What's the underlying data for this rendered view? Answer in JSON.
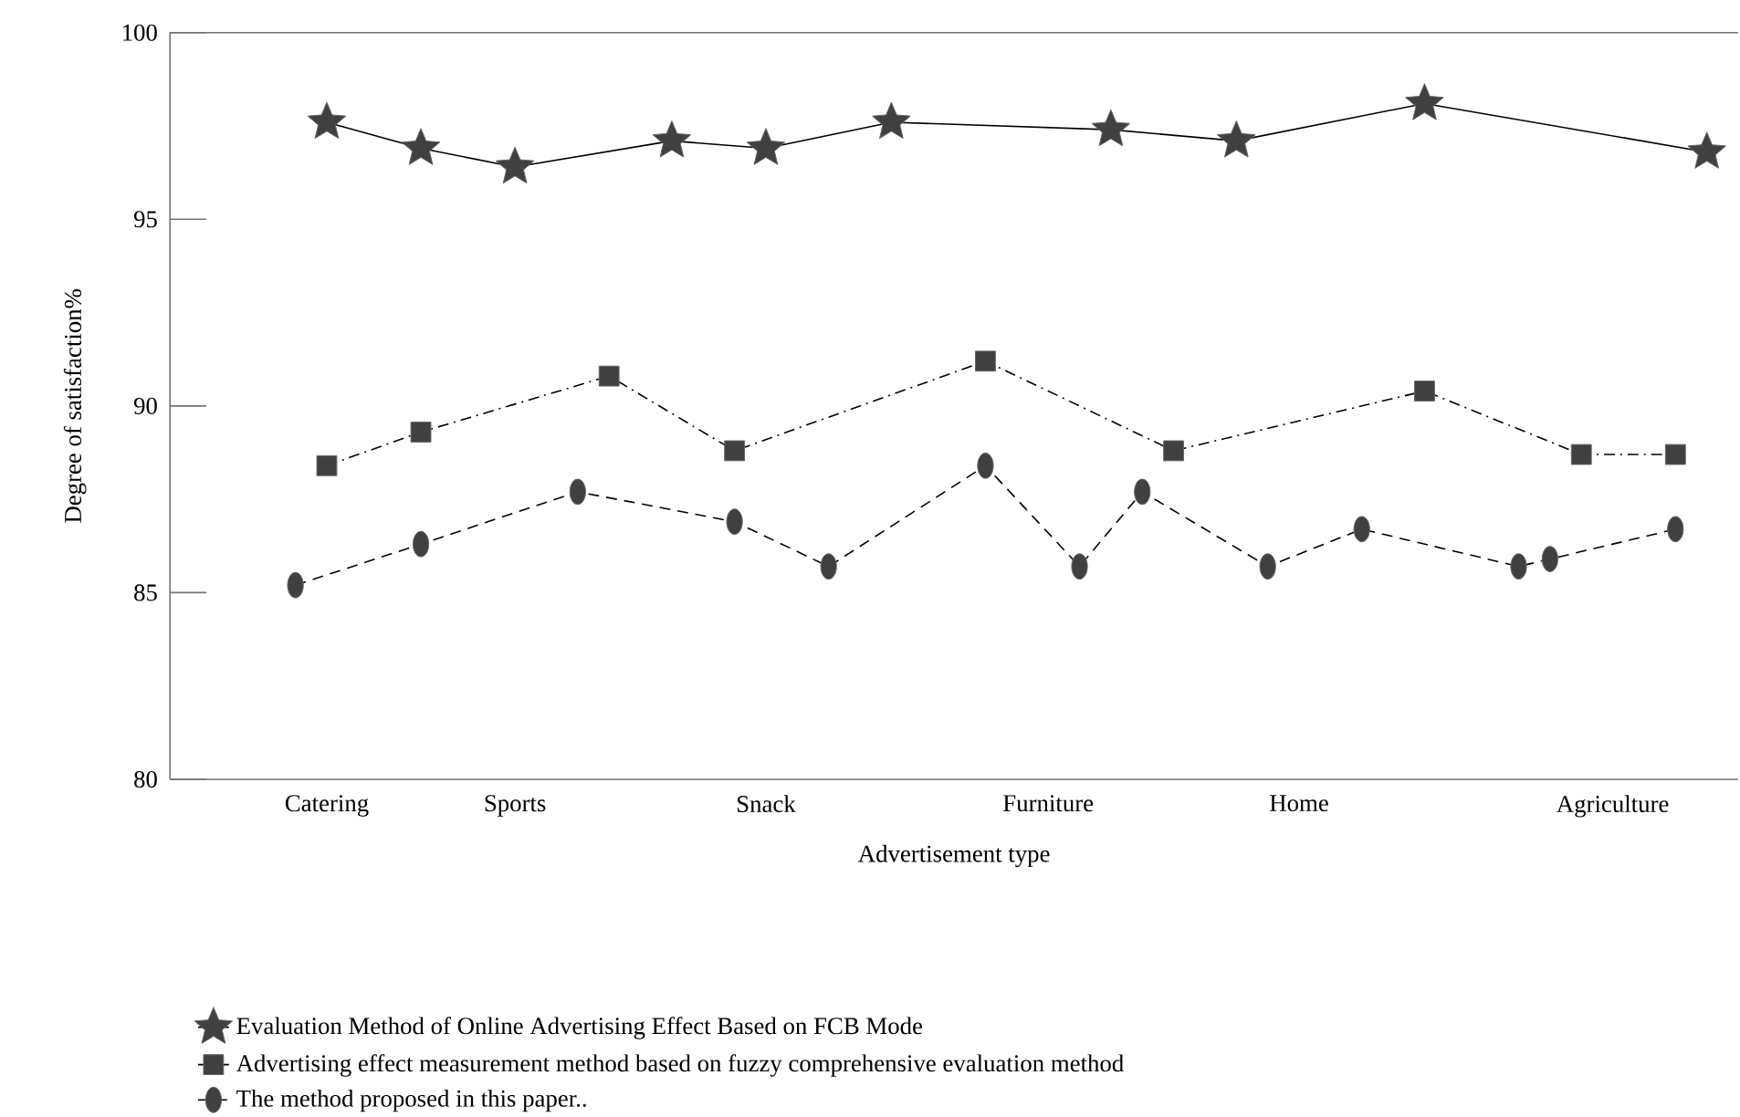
{
  "chart_data": {
    "type": "line",
    "xlabel": "Advertisement type",
    "ylabel": "Degree of satisfaction%",
    "ylim": [
      80,
      100
    ],
    "yticks": [
      80,
      85,
      90,
      95,
      100
    ],
    "categories": [
      null,
      null,
      null,
      null,
      null,
      "Catering",
      null,
      null,
      null,
      null,
      null,
      "Sports",
      null,
      null,
      null,
      null,
      null,
      null,
      null,
      "Snack",
      null,
      null,
      null,
      null,
      null,
      null,
      null,
      null,
      "Furniture",
      null,
      null,
      null,
      null,
      null,
      null,
      null,
      "Home",
      null,
      null,
      null,
      null,
      null,
      null,
      null,
      null,
      null,
      "Agriculture",
      null,
      null,
      null,
      null
    ],
    "legend": "bottom",
    "series": [
      {
        "name": "Evaluation Method of Online Advertising Effect Based on FCB Mode",
        "color": "#404040",
        "marker": "star",
        "line_style": "solid",
        "values": [
          null,
          null,
          null,
          null,
          null,
          97.6,
          null,
          null,
          96.9,
          null,
          null,
          96.4,
          null,
          null,
          null,
          null,
          97.1,
          null,
          null,
          96.9,
          null,
          null,
          null,
          97.6,
          null,
          null,
          null,
          null,
          null,
          null,
          97.4,
          null,
          null,
          null,
          97.1,
          null,
          null,
          null,
          null,
          null,
          98.1,
          null,
          null,
          null,
          null,
          null,
          null,
          null,
          null,
          96.8,
          null
        ]
      },
      {
        "name": "Advertising effect measurement method based on fuzzy comprehensive evaluation method",
        "color": "#404040",
        "marker": "square",
        "line_style": "dashdot",
        "values": [
          null,
          null,
          null,
          null,
          null,
          88.4,
          null,
          null,
          89.3,
          null,
          null,
          null,
          null,
          null,
          90.8,
          null,
          null,
          null,
          88.8,
          null,
          null,
          null,
          null,
          null,
          null,
          null,
          91.2,
          null,
          null,
          null,
          null,
          null,
          88.8,
          null,
          null,
          null,
          null,
          null,
          null,
          null,
          90.4,
          null,
          null,
          null,
          null,
          88.7,
          null,
          null,
          88.7,
          null,
          null
        ]
      },
      {
        "name": "The method proposed in this paper..",
        "color": "#404040",
        "marker": "circle",
        "line_style": "dashed",
        "values": [
          null,
          null,
          null,
          null,
          85.2,
          null,
          null,
          null,
          86.3,
          null,
          null,
          null,
          null,
          87.7,
          null,
          null,
          null,
          null,
          86.9,
          null,
          null,
          85.7,
          null,
          null,
          null,
          null,
          88.4,
          null,
          null,
          85.7,
          null,
          87.7,
          null,
          null,
          null,
          85.7,
          null,
          null,
          86.7,
          null,
          null,
          null,
          null,
          85.7,
          85.9,
          null,
          null,
          null,
          86.7,
          null,
          null
        ]
      }
    ]
  }
}
